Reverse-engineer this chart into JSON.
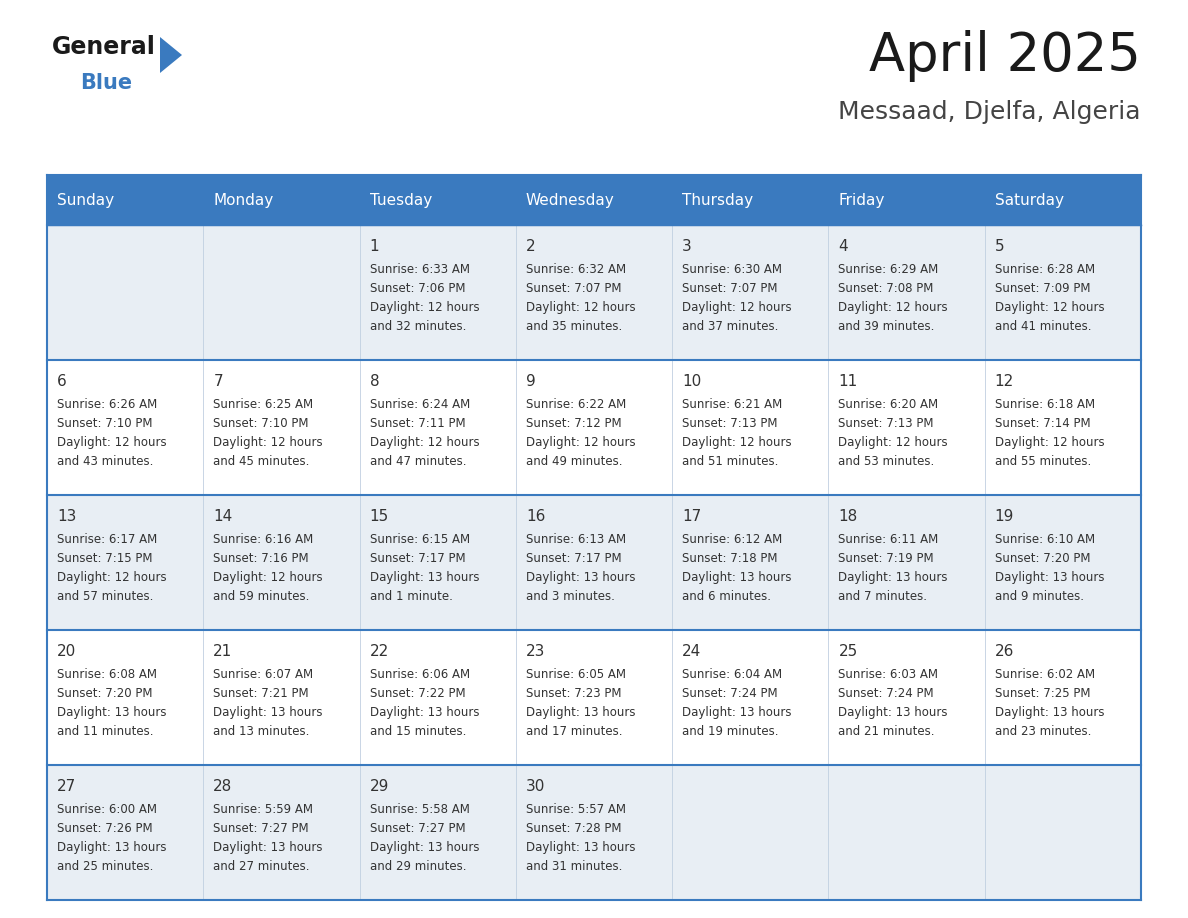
{
  "title": "April 2025",
  "subtitle": "Messaad, Djelfa, Algeria",
  "header_bg_color": "#3a7abf",
  "header_text_color": "#ffffff",
  "day_names": [
    "Sunday",
    "Monday",
    "Tuesday",
    "Wednesday",
    "Thursday",
    "Friday",
    "Saturday"
  ],
  "row0_color": "#e8eef4",
  "row1_color": "#ffffff",
  "border_color": "#3a7abf",
  "cell_line_color": "#b0c4d8",
  "text_color": "#333333",
  "title_color": "#1a1a1a",
  "subtitle_color": "#444444",
  "calendar": [
    [
      {
        "day": null,
        "sunrise": null,
        "sunset": null,
        "daylight_h": null,
        "daylight_m": null
      },
      {
        "day": null,
        "sunrise": null,
        "sunset": null,
        "daylight_h": null,
        "daylight_m": null
      },
      {
        "day": 1,
        "sunrise": "6:33 AM",
        "sunset": "7:06 PM",
        "daylight_h": "12 hours",
        "daylight_m": "and 32 minutes."
      },
      {
        "day": 2,
        "sunrise": "6:32 AM",
        "sunset": "7:07 PM",
        "daylight_h": "12 hours",
        "daylight_m": "and 35 minutes."
      },
      {
        "day": 3,
        "sunrise": "6:30 AM",
        "sunset": "7:07 PM",
        "daylight_h": "12 hours",
        "daylight_m": "and 37 minutes."
      },
      {
        "day": 4,
        "sunrise": "6:29 AM",
        "sunset": "7:08 PM",
        "daylight_h": "12 hours",
        "daylight_m": "and 39 minutes."
      },
      {
        "day": 5,
        "sunrise": "6:28 AM",
        "sunset": "7:09 PM",
        "daylight_h": "12 hours",
        "daylight_m": "and 41 minutes."
      }
    ],
    [
      {
        "day": 6,
        "sunrise": "6:26 AM",
        "sunset": "7:10 PM",
        "daylight_h": "12 hours",
        "daylight_m": "and 43 minutes."
      },
      {
        "day": 7,
        "sunrise": "6:25 AM",
        "sunset": "7:10 PM",
        "daylight_h": "12 hours",
        "daylight_m": "and 45 minutes."
      },
      {
        "day": 8,
        "sunrise": "6:24 AM",
        "sunset": "7:11 PM",
        "daylight_h": "12 hours",
        "daylight_m": "and 47 minutes."
      },
      {
        "day": 9,
        "sunrise": "6:22 AM",
        "sunset": "7:12 PM",
        "daylight_h": "12 hours",
        "daylight_m": "and 49 minutes."
      },
      {
        "day": 10,
        "sunrise": "6:21 AM",
        "sunset": "7:13 PM",
        "daylight_h": "12 hours",
        "daylight_m": "and 51 minutes."
      },
      {
        "day": 11,
        "sunrise": "6:20 AM",
        "sunset": "7:13 PM",
        "daylight_h": "12 hours",
        "daylight_m": "and 53 minutes."
      },
      {
        "day": 12,
        "sunrise": "6:18 AM",
        "sunset": "7:14 PM",
        "daylight_h": "12 hours",
        "daylight_m": "and 55 minutes."
      }
    ],
    [
      {
        "day": 13,
        "sunrise": "6:17 AM",
        "sunset": "7:15 PM",
        "daylight_h": "12 hours",
        "daylight_m": "and 57 minutes."
      },
      {
        "day": 14,
        "sunrise": "6:16 AM",
        "sunset": "7:16 PM",
        "daylight_h": "12 hours",
        "daylight_m": "and 59 minutes."
      },
      {
        "day": 15,
        "sunrise": "6:15 AM",
        "sunset": "7:17 PM",
        "daylight_h": "13 hours",
        "daylight_m": "and 1 minute."
      },
      {
        "day": 16,
        "sunrise": "6:13 AM",
        "sunset": "7:17 PM",
        "daylight_h": "13 hours",
        "daylight_m": "and 3 minutes."
      },
      {
        "day": 17,
        "sunrise": "6:12 AM",
        "sunset": "7:18 PM",
        "daylight_h": "13 hours",
        "daylight_m": "and 6 minutes."
      },
      {
        "day": 18,
        "sunrise": "6:11 AM",
        "sunset": "7:19 PM",
        "daylight_h": "13 hours",
        "daylight_m": "and 7 minutes."
      },
      {
        "day": 19,
        "sunrise": "6:10 AM",
        "sunset": "7:20 PM",
        "daylight_h": "13 hours",
        "daylight_m": "and 9 minutes."
      }
    ],
    [
      {
        "day": 20,
        "sunrise": "6:08 AM",
        "sunset": "7:20 PM",
        "daylight_h": "13 hours",
        "daylight_m": "and 11 minutes."
      },
      {
        "day": 21,
        "sunrise": "6:07 AM",
        "sunset": "7:21 PM",
        "daylight_h": "13 hours",
        "daylight_m": "and 13 minutes."
      },
      {
        "day": 22,
        "sunrise": "6:06 AM",
        "sunset": "7:22 PM",
        "daylight_h": "13 hours",
        "daylight_m": "and 15 minutes."
      },
      {
        "day": 23,
        "sunrise": "6:05 AM",
        "sunset": "7:23 PM",
        "daylight_h": "13 hours",
        "daylight_m": "and 17 minutes."
      },
      {
        "day": 24,
        "sunrise": "6:04 AM",
        "sunset": "7:24 PM",
        "daylight_h": "13 hours",
        "daylight_m": "and 19 minutes."
      },
      {
        "day": 25,
        "sunrise": "6:03 AM",
        "sunset": "7:24 PM",
        "daylight_h": "13 hours",
        "daylight_m": "and 21 minutes."
      },
      {
        "day": 26,
        "sunrise": "6:02 AM",
        "sunset": "7:25 PM",
        "daylight_h": "13 hours",
        "daylight_m": "and 23 minutes."
      }
    ],
    [
      {
        "day": 27,
        "sunrise": "6:00 AM",
        "sunset": "7:26 PM",
        "daylight_h": "13 hours",
        "daylight_m": "and 25 minutes."
      },
      {
        "day": 28,
        "sunrise": "5:59 AM",
        "sunset": "7:27 PM",
        "daylight_h": "13 hours",
        "daylight_m": "and 27 minutes."
      },
      {
        "day": 29,
        "sunrise": "5:58 AM",
        "sunset": "7:27 PM",
        "daylight_h": "13 hours",
        "daylight_m": "and 29 minutes."
      },
      {
        "day": 30,
        "sunrise": "5:57 AM",
        "sunset": "7:28 PM",
        "daylight_h": "13 hours",
        "daylight_m": "and 31 minutes."
      },
      {
        "day": null,
        "sunrise": null,
        "sunset": null,
        "daylight_h": null,
        "daylight_m": null
      },
      {
        "day": null,
        "sunrise": null,
        "sunset": null,
        "daylight_h": null,
        "daylight_m": null
      },
      {
        "day": null,
        "sunrise": null,
        "sunset": null,
        "daylight_h": null,
        "daylight_m": null
      }
    ]
  ],
  "fig_width": 11.88,
  "fig_height": 9.18,
  "dpi": 100
}
